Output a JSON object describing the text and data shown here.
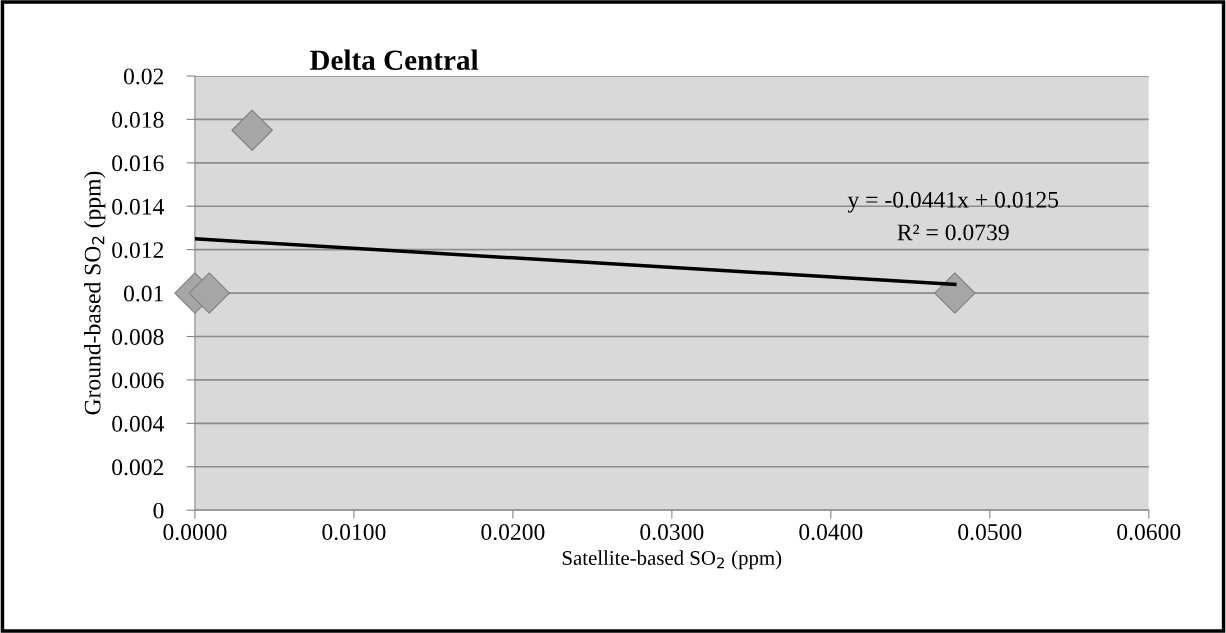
{
  "chart_data": {
    "type": "scatter",
    "title": "Delta Central",
    "xlabel": "Satellite-based SO$_{2}$ (ppm)",
    "ylabel": "Ground-based SO$_{2}$ (ppm)",
    "series": [
      {
        "color": "#a6a6a6",
        "marker": "diamond",
        "x": [
          0.0,
          0.0009,
          0.0036,
          0.0478
        ],
        "values": [
          0.01,
          0.01,
          0.0175,
          0.01
        ]
      },
      {
        "type": "line",
        "color": "#000000",
        "marker": "none",
        "line_style": "solid",
        "x": [
          0.0,
          0.0478
        ],
        "values": [
          0.0125,
          0.0104
        ]
      }
    ],
    "annotations": [
      "y = -0.0441x + 0.0125",
      "R² = 0.0739"
    ],
    "xlim": [
      0,
      0.06
    ],
    "ylim": [
      0,
      0.02
    ],
    "xticks": [
      {
        "value": 0,
        "label": "0.0000"
      },
      {
        "value": 0.01,
        "label": "0.0100"
      },
      {
        "value": 0.02,
        "label": "0.0200"
      },
      {
        "value": 0.03,
        "label": "0.0300"
      },
      {
        "value": 0.04,
        "label": "0.0400"
      },
      {
        "value": 0.05,
        "label": "0.0500"
      },
      {
        "value": 0.06,
        "label": "0.0600"
      }
    ],
    "yticks": [
      0,
      0.002,
      0.004,
      0.006,
      0.008,
      0.01,
      0.012,
      0.014,
      0.016,
      0.018,
      0.02
    ],
    "grid": "y",
    "legend": false
  }
}
